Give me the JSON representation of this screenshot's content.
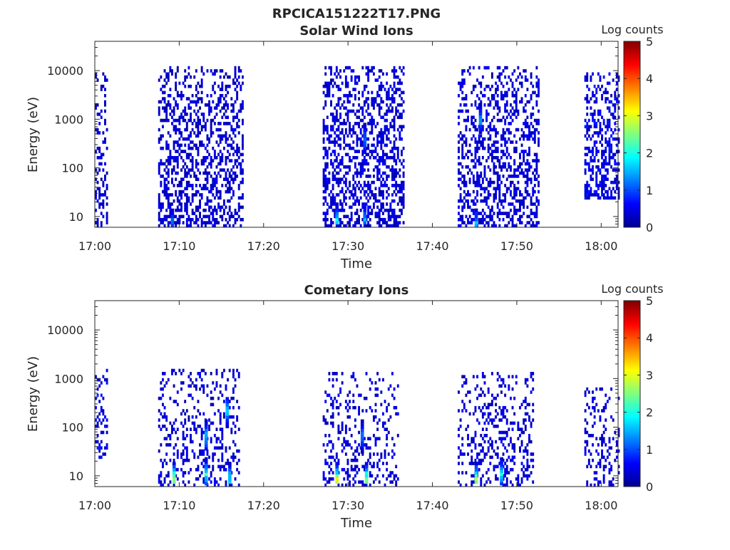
{
  "figure": {
    "title": "RPCICA151222T17.PNG"
  },
  "chart_data": [
    {
      "type": "heatmap",
      "title": "Solar Wind Ions",
      "xlabel": "Time",
      "ylabel": "Energy (eV)",
      "x_ticks": [
        "17:00",
        "17:10",
        "17:20",
        "17:30",
        "17:40",
        "17:50",
        "18:00"
      ],
      "y_ticks": [
        "10",
        "100",
        "1000",
        "10000"
      ],
      "y_scale": "log",
      "xlim": [
        "17:00",
        "18:02"
      ],
      "ylim": [
        6,
        40000
      ],
      "colorbar": {
        "label": "Log counts",
        "range": [
          0,
          5
        ],
        "ticks": [
          "0",
          "1",
          "2",
          "3",
          "4",
          "5"
        ],
        "colormap": "jet"
      },
      "activity_intervals": [
        {
          "start": "17:00",
          "end": "17:01.5",
          "emin": 6,
          "emax": 8000,
          "density": 0.35,
          "level": 0.45
        },
        {
          "start": "17:07.5",
          "end": "17:17.5",
          "emin": 6,
          "emax": 12000,
          "density": 0.42,
          "level": 0.45
        },
        {
          "start": "17:27",
          "end": "17:36.5",
          "emin": 6,
          "emax": 12000,
          "density": 0.45,
          "level": 0.5
        },
        {
          "start": "17:43",
          "end": "17:52.5",
          "emin": 6,
          "emax": 12000,
          "density": 0.42,
          "level": 0.5
        },
        {
          "start": "17:58",
          "end": "18:02",
          "emin": 20,
          "emax": 8000,
          "density": 0.45,
          "level": 0.6
        }
      ],
      "hotspots": [
        {
          "t": "17:28.5",
          "e": 8,
          "level": 2.0
        },
        {
          "t": "17:31.8",
          "e": 8,
          "level": 1.6
        },
        {
          "t": "17:31.8",
          "e": 350,
          "level": 1.5
        },
        {
          "t": "17:45.5",
          "e": 900,
          "level": 1.5
        },
        {
          "t": "17:45.0",
          "e": 7,
          "level": 1.6
        },
        {
          "t": "17:09.0",
          "e": 7,
          "level": 1.3
        }
      ]
    },
    {
      "type": "heatmap",
      "title": "Cometary Ions",
      "xlabel": "Time",
      "ylabel": "Energy (eV)",
      "x_ticks": [
        "17:00",
        "17:10",
        "17:20",
        "17:30",
        "17:40",
        "17:50",
        "18:00"
      ],
      "y_ticks": [
        "10",
        "100",
        "1000",
        "10000"
      ],
      "y_scale": "log",
      "xlim": [
        "17:00",
        "18:02"
      ],
      "ylim": [
        6,
        40000
      ],
      "colorbar": {
        "label": "Log counts",
        "range": [
          0,
          5
        ],
        "ticks": [
          "0",
          "1",
          "2",
          "3",
          "4",
          "5"
        ],
        "colormap": "jet"
      },
      "activity_intervals": [
        {
          "start": "17:00",
          "end": "17:01.5",
          "emin": 20,
          "emax": 1500,
          "density": 0.3,
          "level": 0.6
        },
        {
          "start": "17:07.5",
          "end": "17:17",
          "emin": 6,
          "emax": 1500,
          "density": 0.25,
          "level": 0.5
        },
        {
          "start": "17:27",
          "end": "17:36",
          "emin": 6,
          "emax": 1200,
          "density": 0.22,
          "level": 0.5
        },
        {
          "start": "17:43",
          "end": "17:52",
          "emin": 6,
          "emax": 1200,
          "density": 0.25,
          "level": 0.5
        },
        {
          "start": "17:58",
          "end": "18:02",
          "emin": 6,
          "emax": 600,
          "density": 0.25,
          "level": 0.5
        }
      ],
      "hotspots": [
        {
          "t": "17:09.2",
          "e": 8,
          "level": 3.0
        },
        {
          "t": "17:13.0",
          "e": 10,
          "level": 2.2
        },
        {
          "t": "17:13.0",
          "e": 60,
          "level": 1.8
        },
        {
          "t": "17:15.8",
          "e": 8,
          "level": 2.0
        },
        {
          "t": "17:15.5",
          "e": 200,
          "level": 1.8
        },
        {
          "t": "17:28.5",
          "e": 8,
          "level": 3.2
        },
        {
          "t": "17:32.0",
          "e": 8,
          "level": 2.8
        },
        {
          "t": "17:45.0",
          "e": 8,
          "level": 2.8
        },
        {
          "t": "17:48.0",
          "e": 10,
          "level": 2.0
        },
        {
          "t": "17:31.5",
          "e": 60,
          "level": 1.4
        }
      ]
    }
  ]
}
